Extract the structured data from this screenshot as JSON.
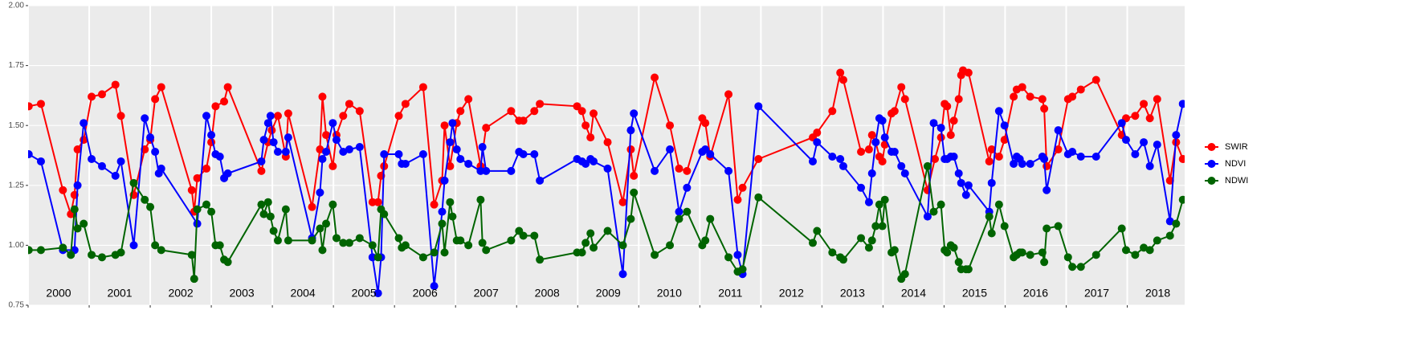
{
  "chart_data": {
    "type": "line",
    "xlim": [
      2000,
      2018.94
    ],
    "xticks": [
      2000,
      2001,
      2002,
      2003,
      2004,
      2005,
      2006,
      2007,
      2008,
      2009,
      2010,
      2011,
      2012,
      2013,
      2014,
      2015,
      2016,
      2017,
      2018
    ],
    "ylim": [
      0.75,
      2.0
    ],
    "yticks": [
      0.75,
      {
        "value": 1.0,
        "label": "1.00"
      },
      1.25,
      {
        "value": 1.5,
        "label": "1.50"
      },
      1.75,
      {
        "value": 2.0,
        "label": "2.00"
      }
    ],
    "grid": true,
    "legend": "right",
    "series": [
      {
        "name": "SWIR",
        "color": "#ff0000",
        "x": [
          2000.01,
          2000.21,
          2000.57,
          2000.7,
          2000.76,
          2000.81,
          2000.91,
          2001.04,
          2001.21,
          2001.43,
          2001.52,
          2001.73,
          2001.91,
          2002.0,
          2002.08,
          2002.18,
          2002.68,
          2002.72,
          2002.77,
          2002.92,
          2003.0,
          2003.07,
          2003.21,
          2003.27,
          2003.82,
          2003.93,
          2003.99,
          2004.09,
          2004.22,
          2004.26,
          2004.65,
          2004.78,
          2004.82,
          2004.88,
          2004.99,
          2005.05,
          2005.16,
          2005.26,
          2005.43,
          2005.64,
          2005.73,
          2005.78,
          2005.83,
          2006.07,
          2006.18,
          2006.47,
          2006.65,
          2006.78,
          2006.82,
          2006.91,
          2007.02,
          2007.08,
          2007.21,
          2007.41,
          2007.5,
          2007.91,
          2008.04,
          2008.11,
          2008.29,
          2008.38,
          2008.99,
          2009.07,
          2009.13,
          2009.21,
          2009.26,
          2009.49,
          2009.74,
          2009.87,
          2009.92,
          2010.26,
          2010.51,
          2010.66,
          2010.79,
          2011.04,
          2011.09,
          2011.17,
          2011.47,
          2011.62,
          2011.7,
          2011.96,
          2012.85,
          2012.92,
          2013.17,
          2013.3,
          2013.35,
          2013.64,
          2013.77,
          2013.82,
          2013.88,
          2013.94,
          2013.99,
          2014.03,
          2014.14,
          2014.19,
          2014.3,
          2014.36,
          2014.73,
          2014.85,
          2014.95,
          2015.01,
          2015.05,
          2015.11,
          2015.16,
          2015.24,
          2015.28,
          2015.31,
          2015.4,
          2015.74,
          2015.78,
          2015.9,
          2015.99,
          2016.14,
          2016.19,
          2016.28,
          2016.41,
          2016.61,
          2016.64,
          2016.68,
          2016.87,
          2017.03,
          2017.1,
          2017.24,
          2017.49,
          2017.91,
          2017.98,
          2018.13,
          2018.27,
          2018.37,
          2018.49,
          2018.7,
          2018.8,
          2018.91
        ],
        "values": [
          1.58,
          1.59,
          1.23,
          1.13,
          1.21,
          1.4,
          1.44,
          1.62,
          1.63,
          1.67,
          1.54,
          1.21,
          1.4,
          1.44,
          1.61,
          1.66,
          1.23,
          1.14,
          1.28,
          1.32,
          1.43,
          1.58,
          1.6,
          1.66,
          1.31,
          1.43,
          1.48,
          1.54,
          1.37,
          1.55,
          1.16,
          1.4,
          1.62,
          1.46,
          1.33,
          1.46,
          1.54,
          1.59,
          1.56,
          1.18,
          1.18,
          1.29,
          1.33,
          1.54,
          1.59,
          1.66,
          1.17,
          1.27,
          1.5,
          1.33,
          1.51,
          1.56,
          1.61,
          1.33,
          1.49,
          1.56,
          1.52,
          1.52,
          1.56,
          1.59,
          1.58,
          1.56,
          1.5,
          1.45,
          1.55,
          1.43,
          1.18,
          1.4,
          1.29,
          1.7,
          1.5,
          1.32,
          1.31,
          1.53,
          1.51,
          1.37,
          1.63,
          1.19,
          1.24,
          1.36,
          1.45,
          1.47,
          1.56,
          1.72,
          1.69,
          1.39,
          1.4,
          1.46,
          1.43,
          1.37,
          1.35,
          1.42,
          1.55,
          1.56,
          1.66,
          1.61,
          1.23,
          1.36,
          1.45,
          1.59,
          1.58,
          1.46,
          1.52,
          1.61,
          1.71,
          1.73,
          1.72,
          1.35,
          1.4,
          1.37,
          1.44,
          1.62,
          1.65,
          1.66,
          1.62,
          1.61,
          1.57,
          1.33,
          1.4,
          1.61,
          1.62,
          1.65,
          1.69,
          1.46,
          1.53,
          1.54,
          1.59,
          1.53,
          1.61,
          1.27,
          1.43,
          1.36
        ]
      },
      {
        "name": "NDVI",
        "color": "#0000ff",
        "x": [
          2000.01,
          2000.21,
          2000.57,
          2000.76,
          2000.81,
          2000.91,
          2001.04,
          2001.21,
          2001.43,
          2001.52,
          2001.73,
          2001.91,
          2002.0,
          2002.08,
          2002.14,
          2002.18,
          2002.77,
          2002.92,
          2003.0,
          2003.07,
          2003.14,
          2003.21,
          2003.27,
          2003.82,
          2003.86,
          2003.93,
          2003.97,
          2004.02,
          2004.09,
          2004.22,
          2004.26,
          2004.65,
          2004.78,
          2004.82,
          2004.88,
          2004.99,
          2005.05,
          2005.16,
          2005.26,
          2005.43,
          2005.64,
          2005.73,
          2005.78,
          2005.83,
          2006.07,
          2006.12,
          2006.18,
          2006.47,
          2006.65,
          2006.78,
          2006.82,
          2006.91,
          2006.95,
          2007.02,
          2007.08,
          2007.21,
          2007.41,
          2007.44,
          2007.5,
          2007.91,
          2008.04,
          2008.11,
          2008.29,
          2008.38,
          2008.99,
          2009.07,
          2009.13,
          2009.21,
          2009.26,
          2009.49,
          2009.74,
          2009.87,
          2009.92,
          2010.26,
          2010.51,
          2010.66,
          2010.79,
          2011.04,
          2011.09,
          2011.17,
          2011.47,
          2011.62,
          2011.7,
          2011.96,
          2012.85,
          2012.92,
          2013.17,
          2013.3,
          2013.35,
          2013.64,
          2013.77,
          2013.82,
          2013.88,
          2013.94,
          2013.99,
          2014.03,
          2014.14,
          2014.19,
          2014.3,
          2014.36,
          2014.73,
          2014.83,
          2014.95,
          2015.01,
          2015.05,
          2015.11,
          2015.16,
          2015.24,
          2015.28,
          2015.36,
          2015.4,
          2015.74,
          2015.78,
          2015.9,
          2015.99,
          2016.14,
          2016.19,
          2016.24,
          2016.28,
          2016.41,
          2016.61,
          2016.64,
          2016.68,
          2016.87,
          2017.03,
          2017.1,
          2017.24,
          2017.49,
          2017.91,
          2017.98,
          2018.13,
          2018.27,
          2018.37,
          2018.49,
          2018.7,
          2018.8,
          2018.91
        ],
        "values": [
          1.38,
          1.35,
          0.98,
          0.98,
          1.25,
          1.51,
          1.36,
          1.33,
          1.29,
          1.35,
          1.0,
          1.53,
          1.45,
          1.39,
          1.3,
          1.32,
          1.09,
          1.54,
          1.46,
          1.38,
          1.37,
          1.28,
          1.3,
          1.35,
          1.44,
          1.51,
          1.54,
          1.43,
          1.39,
          1.39,
          1.45,
          1.03,
          1.22,
          1.36,
          1.39,
          1.51,
          1.44,
          1.39,
          1.4,
          1.41,
          0.95,
          0.8,
          0.95,
          1.38,
          1.38,
          1.34,
          1.34,
          1.38,
          0.83,
          1.14,
          1.27,
          1.43,
          1.51,
          1.4,
          1.36,
          1.34,
          1.31,
          1.41,
          1.31,
          1.31,
          1.39,
          1.38,
          1.38,
          1.27,
          1.36,
          1.35,
          1.34,
          1.36,
          1.35,
          1.32,
          0.88,
          1.48,
          1.55,
          1.31,
          1.4,
          1.14,
          1.24,
          1.39,
          1.4,
          1.38,
          1.31,
          0.96,
          0.88,
          1.58,
          1.35,
          1.43,
          1.37,
          1.36,
          1.33,
          1.24,
          1.18,
          1.3,
          1.43,
          1.53,
          1.52,
          1.45,
          1.39,
          1.39,
          1.33,
          1.3,
          1.12,
          1.51,
          1.49,
          1.36,
          1.36,
          1.37,
          1.37,
          1.3,
          1.26,
          1.21,
          1.25,
          1.14,
          1.26,
          1.56,
          1.5,
          1.34,
          1.37,
          1.36,
          1.34,
          1.34,
          1.37,
          1.36,
          1.23,
          1.48,
          1.38,
          1.39,
          1.37,
          1.37,
          1.51,
          1.44,
          1.38,
          1.43,
          1.33,
          1.42,
          1.1,
          1.46,
          1.59
        ]
      },
      {
        "name": "NDWI",
        "color": "#006400",
        "x": [
          2000.01,
          2000.21,
          2000.57,
          2000.7,
          2000.76,
          2000.81,
          2000.91,
          2001.04,
          2001.21,
          2001.43,
          2001.52,
          2001.73,
          2001.91,
          2002.0,
          2002.08,
          2002.18,
          2002.68,
          2002.72,
          2002.77,
          2002.92,
          2003.0,
          2003.07,
          2003.14,
          2003.21,
          2003.27,
          2003.82,
          2003.86,
          2003.93,
          2003.97,
          2004.02,
          2004.09,
          2004.22,
          2004.26,
          2004.65,
          2004.78,
          2004.82,
          2004.88,
          2004.99,
          2005.05,
          2005.16,
          2005.26,
          2005.43,
          2005.64,
          2005.73,
          2005.78,
          2005.83,
          2006.07,
          2006.12,
          2006.18,
          2006.47,
          2006.65,
          2006.78,
          2006.82,
          2006.91,
          2006.95,
          2007.02,
          2007.08,
          2007.21,
          2007.41,
          2007.44,
          2007.5,
          2007.91,
          2008.04,
          2008.11,
          2008.29,
          2008.38,
          2008.99,
          2009.07,
          2009.13,
          2009.21,
          2009.26,
          2009.49,
          2009.74,
          2009.87,
          2009.92,
          2010.26,
          2010.51,
          2010.66,
          2010.79,
          2011.04,
          2011.09,
          2011.17,
          2011.47,
          2011.62,
          2011.7,
          2011.96,
          2012.85,
          2012.92,
          2013.17,
          2013.3,
          2013.35,
          2013.64,
          2013.77,
          2013.82,
          2013.88,
          2013.94,
          2013.99,
          2014.03,
          2014.14,
          2014.19,
          2014.3,
          2014.36,
          2014.73,
          2014.83,
          2014.95,
          2015.01,
          2015.05,
          2015.11,
          2015.16,
          2015.24,
          2015.28,
          2015.36,
          2015.4,
          2015.74,
          2015.78,
          2015.9,
          2015.99,
          2016.14,
          2016.19,
          2016.24,
          2016.28,
          2016.41,
          2016.61,
          2016.64,
          2016.68,
          2016.87,
          2017.03,
          2017.1,
          2017.24,
          2017.49,
          2017.91,
          2017.98,
          2018.13,
          2018.27,
          2018.37,
          2018.49,
          2018.7,
          2018.8,
          2018.91
        ],
        "values": [
          0.98,
          0.98,
          0.99,
          0.96,
          1.15,
          1.07,
          1.09,
          0.96,
          0.95,
          0.96,
          0.97,
          1.26,
          1.19,
          1.16,
          1.0,
          0.98,
          0.96,
          0.86,
          1.15,
          1.17,
          1.14,
          1.0,
          1.0,
          0.94,
          0.93,
          1.17,
          1.13,
          1.18,
          1.12,
          1.06,
          1.02,
          1.15,
          1.02,
          1.02,
          1.07,
          0.98,
          1.09,
          1.17,
          1.03,
          1.01,
          1.01,
          1.03,
          1.0,
          0.95,
          1.15,
          1.13,
          1.03,
          0.99,
          1.0,
          0.95,
          0.97,
          1.09,
          0.97,
          1.18,
          1.12,
          1.02,
          1.02,
          1.0,
          1.19,
          1.01,
          0.98,
          1.02,
          1.06,
          1.04,
          1.04,
          0.94,
          0.97,
          0.97,
          1.01,
          1.05,
          0.99,
          1.06,
          1.0,
          1.11,
          1.22,
          0.96,
          1.0,
          1.11,
          1.14,
          1.0,
          1.02,
          1.11,
          0.95,
          0.89,
          0.9,
          1.2,
          1.01,
          1.06,
          0.97,
          0.95,
          0.94,
          1.03,
          0.99,
          1.02,
          1.08,
          1.17,
          1.08,
          1.19,
          0.97,
          0.98,
          0.86,
          0.88,
          1.33,
          1.14,
          1.17,
          0.98,
          0.97,
          1.0,
          0.99,
          0.93,
          0.9,
          0.9,
          0.9,
          1.12,
          1.05,
          1.17,
          1.08,
          0.95,
          0.96,
          0.97,
          0.97,
          0.96,
          0.97,
          0.93,
          1.07,
          1.08,
          0.95,
          0.91,
          0.91,
          0.96,
          1.07,
          0.98,
          0.96,
          0.99,
          0.98,
          1.02,
          1.04,
          1.09,
          1.19
        ]
      }
    ]
  }
}
